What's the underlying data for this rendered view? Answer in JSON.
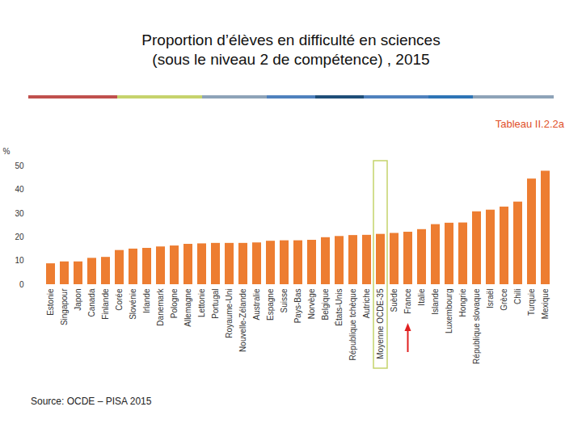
{
  "chart_data": {
    "type": "bar",
    "title": "Proportion d’élèves en difficulté en sciences\n(sous le niveau 2 de compétence) , 2015",
    "y_label": "%",
    "source": "Source: OCDE – PISA 2015",
    "categories": [
      "Estonie",
      "Singapour",
      "Japon",
      "Canada",
      "Finlande",
      "Corée",
      "Slovénie",
      "Irlande",
      "Danemark",
      "Pologne",
      "Allemagne",
      "Lettonie",
      "Portugal",
      "Royaume-Uni",
      "Nouvelle-Zélande",
      "Australie",
      "Espagne",
      "Suisse",
      "Pays-Bas",
      "Norvège",
      "Belgique",
      "États-Unis",
      "République tchèque",
      "Autriche",
      "Moyenne OCDE-35",
      "Suède",
      "France",
      "Italie",
      "Islande",
      "Luxembourg",
      "Hongrie",
      "République slovaque",
      "Israël",
      "Grèce",
      "Chili",
      "Turquie",
      "Mexique"
    ],
    "values": [
      8.8,
      9.6,
      9.6,
      11.1,
      11.5,
      14.4,
      15.0,
      15.3,
      15.9,
      16.3,
      17.0,
      17.2,
      17.4,
      17.4,
      17.4,
      17.6,
      18.3,
      18.5,
      18.5,
      18.7,
      19.8,
      20.3,
      20.7,
      20.8,
      21.2,
      21.6,
      22.1,
      23.2,
      25.3,
      25.9,
      26.0,
      30.7,
      31.4,
      32.7,
      34.8,
      44.5,
      47.8
    ],
    "color": "#ED7D31",
    "ylim": [
      0,
      50
    ],
    "yticks": [
      0,
      10,
      20,
      30,
      40,
      50
    ],
    "grid": false,
    "annotations": [
      {
        "type": "text",
        "text": "Tableau II.2.2a"
      },
      {
        "type": "box",
        "category": "Moyenne OCDE-35"
      },
      {
        "type": "arrow",
        "category": "France"
      }
    ]
  }
}
